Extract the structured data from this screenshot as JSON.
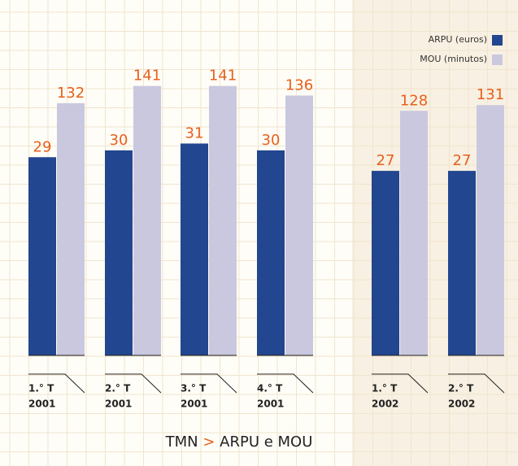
{
  "chart_data": {
    "type": "bar",
    "title": "TMN > ARPU e MOU",
    "categories": [
      [
        "1.° T",
        "2001"
      ],
      [
        "2.° T",
        "2001"
      ],
      [
        "3.° T",
        "2001"
      ],
      [
        "4.° T",
        "2001"
      ],
      [
        "1.° T",
        "2002"
      ],
      [
        "2.° T",
        "2002"
      ]
    ],
    "series": [
      {
        "name": "ARPU (euros)",
        "color": "#22468f",
        "values": [
          29,
          30,
          31,
          30,
          27,
          27
        ]
      },
      {
        "name": "MOU (minutos)",
        "color": "#c9c8df",
        "axis": "y2",
        "values": [
          132,
          141,
          141,
          136,
          128,
          131
        ]
      }
    ],
    "ylim": [
      0,
      52
    ],
    "y2lim": [
      0,
      186
    ],
    "legend": "top-right",
    "grid": true
  }
}
